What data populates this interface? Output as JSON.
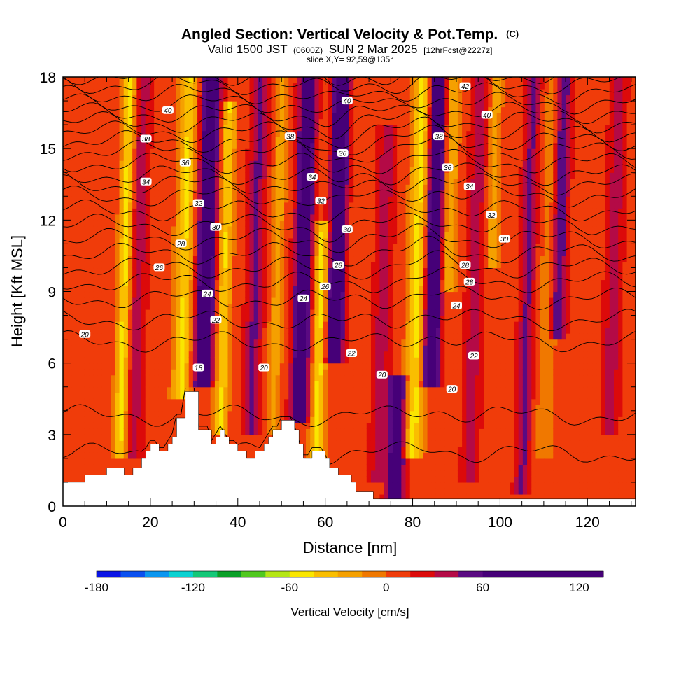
{
  "chart_data": {
    "type": "heatmap",
    "title": "Angled Section: Vertical Velocity & Pot.Temp.",
    "title_units": "(C)",
    "subtitle_prefix": "Valid 1500 JST",
    "subtitle_zulu": "(0600Z)",
    "subtitle_date": "SUN 2 Mar 2025",
    "subtitle_fcst": "[12hrFcst@2227z]",
    "slice_label": "slice X,Y= 92,59@135°",
    "xlabel": "Distance [nm]",
    "ylabel": "Height [Kft MSL]",
    "xlim": [
      0,
      131
    ],
    "ylim": [
      0,
      18
    ],
    "x_ticks": [
      0,
      20,
      40,
      60,
      80,
      100,
      120
    ],
    "y_ticks": [
      0,
      3,
      6,
      9,
      12,
      15,
      18
    ],
    "colorbar": {
      "label": "Vertical Velocity [cm/s]",
      "min": -180,
      "max": 135,
      "step": 15,
      "tick_values": [
        -180,
        -120,
        -60,
        0,
        60,
        120
      ],
      "colors": [
        "#0a14e6",
        "#0a50f0",
        "#0a96f0",
        "#0ad2d2",
        "#14c878",
        "#0aa028",
        "#50c81e",
        "#b4e614",
        "#fae600",
        "#fabe00",
        "#f5a000",
        "#f07800",
        "#f03c0a",
        "#dc0a0a",
        "#b40a46",
        "#5a0a82",
        "#460078"
      ]
    },
    "terrain_kft": [
      [
        0,
        1
      ],
      [
        5,
        1
      ],
      [
        5,
        1.3
      ],
      [
        10,
        1.3
      ],
      [
        10,
        1.6
      ],
      [
        14,
        1.6
      ],
      [
        14,
        1.3
      ],
      [
        16,
        1.3
      ],
      [
        16,
        1.6
      ],
      [
        18,
        1.6
      ],
      [
        18,
        2
      ],
      [
        19,
        2
      ],
      [
        19,
        2.3
      ],
      [
        20,
        2.3
      ],
      [
        20,
        2.6
      ],
      [
        22,
        2.6
      ],
      [
        22,
        2.3
      ],
      [
        24,
        2.3
      ],
      [
        24,
        2.6
      ],
      [
        25,
        2.6
      ],
      [
        25,
        2.9
      ],
      [
        26,
        2.9
      ],
      [
        26,
        3.7
      ],
      [
        28,
        3.7
      ],
      [
        28,
        4.8
      ],
      [
        31,
        4.8
      ],
      [
        31,
        3.2
      ],
      [
        34,
        3.2
      ],
      [
        34,
        2.6
      ],
      [
        35,
        2.6
      ],
      [
        35,
        2.9
      ],
      [
        36,
        2.9
      ],
      [
        36,
        3.2
      ],
      [
        37,
        3.2
      ],
      [
        37,
        2.9
      ],
      [
        38,
        2.9
      ],
      [
        38,
        2.6
      ],
      [
        40,
        2.6
      ],
      [
        40,
        2.3
      ],
      [
        42,
        2.3
      ],
      [
        42,
        2
      ],
      [
        44,
        2
      ],
      [
        44,
        2.3
      ],
      [
        46,
        2.3
      ],
      [
        46,
        2.6
      ],
      [
        47,
        2.6
      ],
      [
        47,
        2.9
      ],
      [
        48,
        2.9
      ],
      [
        48,
        3.2
      ],
      [
        50,
        3.2
      ],
      [
        50,
        3.6
      ],
      [
        53,
        3.6
      ],
      [
        53,
        3.2
      ],
      [
        54,
        3.2
      ],
      [
        54,
        2.6
      ],
      [
        55,
        2.6
      ],
      [
        55,
        2
      ],
      [
        57,
        2
      ],
      [
        57,
        2.3
      ],
      [
        60,
        2.3
      ],
      [
        60,
        2
      ],
      [
        61,
        2
      ],
      [
        61,
        1.6
      ],
      [
        63,
        1.6
      ],
      [
        63,
        1.3
      ],
      [
        66,
        1.3
      ],
      [
        66,
        1
      ],
      [
        67,
        1
      ],
      [
        67,
        0.6
      ],
      [
        71,
        0.6
      ],
      [
        71,
        0.3
      ],
      [
        131,
        0.3
      ],
      [
        131,
        0
      ],
      [
        0,
        0
      ]
    ],
    "w_features": [
      {
        "x": 13,
        "w": -60,
        "half_width": 1.5,
        "y_from": 2,
        "y_to": 18
      },
      {
        "x": 16,
        "w": 30,
        "half_width": 2,
        "y_from": 2,
        "y_to": 18
      },
      {
        "x": 27,
        "w": -55,
        "half_width": 2,
        "y_from": 4.5,
        "y_to": 18
      },
      {
        "x": 32,
        "w": 80,
        "half_width": 2.2,
        "y_from": 5,
        "y_to": 18
      },
      {
        "x": 36,
        "w": -55,
        "half_width": 1.5,
        "y_from": 3,
        "y_to": 17
      },
      {
        "x": 43,
        "w": 40,
        "half_width": 2,
        "y_from": 3,
        "y_to": 18
      },
      {
        "x": 48,
        "w": -30,
        "half_width": 1.5,
        "y_from": 3,
        "y_to": 18
      },
      {
        "x": 54,
        "w": 80,
        "half_width": 2,
        "y_from": 3.5,
        "y_to": 18
      },
      {
        "x": 58,
        "w": -60,
        "half_width": 1.5,
        "y_from": 2,
        "y_to": 12
      },
      {
        "x": 62,
        "w": 110,
        "half_width": 1.8,
        "y_from": 6,
        "y_to": 18
      },
      {
        "x": 72,
        "w": 30,
        "half_width": 2,
        "y_from": 1,
        "y_to": 16
      },
      {
        "x": 76,
        "w": 75,
        "half_width": 2,
        "y_from": 0.3,
        "y_to": 5.5
      },
      {
        "x": 80,
        "w": -60,
        "half_width": 2,
        "y_from": 2,
        "y_to": 18
      },
      {
        "x": 84,
        "w": 90,
        "half_width": 2,
        "y_from": 5,
        "y_to": 18
      },
      {
        "x": 88,
        "w": -40,
        "half_width": 1.5,
        "y_from": 9,
        "y_to": 18
      },
      {
        "x": 93,
        "w": 30,
        "half_width": 2,
        "y_from": 1,
        "y_to": 18
      },
      {
        "x": 98,
        "w": -30,
        "half_width": 1.5,
        "y_from": 10,
        "y_to": 18
      },
      {
        "x": 105,
        "w": 40,
        "half_width": 1.8,
        "y_from": 0.5,
        "y_to": 18
      },
      {
        "x": 110,
        "w": -20,
        "half_width": 2,
        "y_from": 2,
        "y_to": 18
      },
      {
        "x": 113,
        "w": 55,
        "half_width": 1.8,
        "y_from": 7,
        "y_to": 18
      },
      {
        "x": 125,
        "w": 30,
        "half_width": 2,
        "y_from": 3,
        "y_to": 18
      }
    ],
    "isentrope_baselines_kft": [
      [
        18,
        2.2
      ],
      [
        19,
        3.8
      ],
      [
        20,
        6.9
      ],
      [
        21,
        7.8
      ],
      [
        22,
        8.7
      ],
      [
        23,
        9.4
      ],
      [
        24,
        10.0
      ],
      [
        25,
        10.6
      ],
      [
        26,
        11.2
      ],
      [
        27,
        11.8
      ],
      [
        28,
        12.4
      ],
      [
        29,
        13.0
      ],
      [
        30,
        13.5
      ],
      [
        31,
        13.9
      ],
      [
        32,
        14.4
      ],
      [
        33,
        14.9
      ],
      [
        34,
        15.3
      ],
      [
        35,
        15.7
      ],
      [
        36,
        16.1
      ],
      [
        37,
        16.5
      ],
      [
        38,
        16.9
      ],
      [
        39,
        17.3
      ],
      [
        40,
        17.7
      ],
      [
        41,
        18.1
      ],
      [
        42,
        18.5
      ]
    ],
    "contour_labels": [
      {
        "text": "40",
        "x": 24,
        "y": 16.6
      },
      {
        "text": "38",
        "x": 19,
        "y": 15.4
      },
      {
        "text": "36",
        "x": 28,
        "y": 14.4
      },
      {
        "text": "34",
        "x": 19,
        "y": 13.6
      },
      {
        "text": "32",
        "x": 31,
        "y": 12.7
      },
      {
        "text": "30",
        "x": 35,
        "y": 11.7
      },
      {
        "text": "28",
        "x": 27,
        "y": 11.0
      },
      {
        "text": "26",
        "x": 22,
        "y": 10.0
      },
      {
        "text": "24",
        "x": 33,
        "y": 8.9
      },
      {
        "text": "22",
        "x": 35,
        "y": 7.8
      },
      {
        "text": "20",
        "x": 5,
        "y": 7.2
      },
      {
        "text": "18",
        "x": 31,
        "y": 5.8
      },
      {
        "text": "20",
        "x": 46,
        "y": 5.8
      },
      {
        "text": "38",
        "x": 52,
        "y": 15.5
      },
      {
        "text": "40",
        "x": 65,
        "y": 17.0
      },
      {
        "text": "36",
        "x": 64,
        "y": 14.8
      },
      {
        "text": "34",
        "x": 57,
        "y": 13.8
      },
      {
        "text": "32",
        "x": 59,
        "y": 12.8
      },
      {
        "text": "30",
        "x": 65,
        "y": 11.6
      },
      {
        "text": "28",
        "x": 63,
        "y": 10.1
      },
      {
        "text": "26",
        "x": 60,
        "y": 9.2
      },
      {
        "text": "24",
        "x": 55,
        "y": 8.7
      },
      {
        "text": "22",
        "x": 66,
        "y": 6.4
      },
      {
        "text": "20",
        "x": 73,
        "y": 5.5
      },
      {
        "text": "42",
        "x": 92,
        "y": 17.6
      },
      {
        "text": "40",
        "x": 97,
        "y": 16.4
      },
      {
        "text": "38",
        "x": 86,
        "y": 15.5
      },
      {
        "text": "36",
        "x": 88,
        "y": 14.2
      },
      {
        "text": "34",
        "x": 93,
        "y": 13.4
      },
      {
        "text": "32",
        "x": 98,
        "y": 12.2
      },
      {
        "text": "30",
        "x": 101,
        "y": 11.2
      },
      {
        "text": "28",
        "x": 92,
        "y": 10.1
      },
      {
        "text": "28",
        "x": 93,
        "y": 9.4
      },
      {
        "text": "24",
        "x": 90,
        "y": 8.4
      },
      {
        "text": "22",
        "x": 94,
        "y": 6.3
      },
      {
        "text": "20",
        "x": 89,
        "y": 4.9
      }
    ]
  }
}
